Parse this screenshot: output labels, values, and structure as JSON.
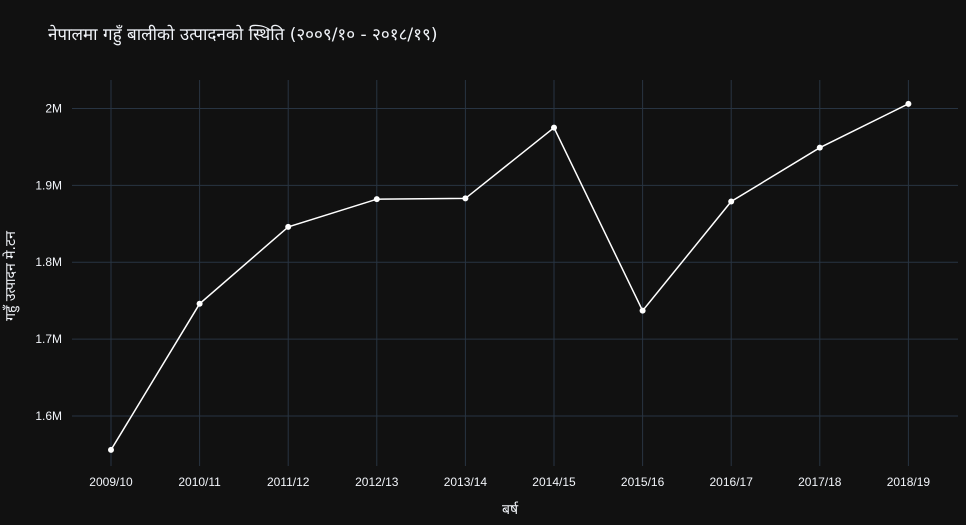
{
  "chart_data": {
    "type": "line",
    "title": "नेपालमा गहुँ बालीको उत्पादनको स्थिति (२००९/१० - २०१८/१९)",
    "xlabel": "बर्ष",
    "ylabel": "गहुँ उत्पादन मे.टन",
    "categories": [
      "2009/10",
      "2010/11",
      "2011/12",
      "2012/13",
      "2013/14",
      "2014/15",
      "2015/16",
      "2016/17",
      "2017/18",
      "2018/19"
    ],
    "series": [
      {
        "values": [
          1556000,
          1746000,
          1846000,
          1882000,
          1883000,
          1975000,
          1737000,
          1879000,
          1949000,
          2006000
        ],
        "color": "#ffffff"
      }
    ],
    "ylim": [
      1535000,
      2037000
    ],
    "yticks": [
      1600000,
      1700000,
      1800000,
      1900000,
      2000000
    ],
    "ytick_labels": [
      "1.6M",
      "1.7M",
      "1.8M",
      "1.9M",
      "2M"
    ],
    "grid": true,
    "background": "#111111",
    "grid_color": "#283442",
    "legend": "none"
  }
}
